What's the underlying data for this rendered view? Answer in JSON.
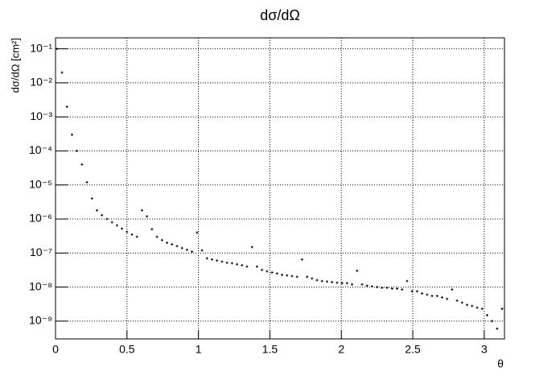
{
  "chart_data": {
    "type": "scatter",
    "title": "dσ/dΩ",
    "x_label": "θ",
    "y_label": "dσ/dΩ [cm²]",
    "log_y": true,
    "grid": true,
    "color": "#000000",
    "xlim": [
      0,
      3.1416
    ],
    "ylim": [
      3e-10,
      0.21
    ],
    "xticks": [
      0,
      0.5,
      1,
      1.5,
      2,
      2.5,
      3
    ],
    "yticks": [
      {
        "value": 1e-09,
        "label": "10⁻⁹"
      },
      {
        "value": 1e-08,
        "label": "10⁻⁸"
      },
      {
        "value": 1e-07,
        "label": "10⁻⁷"
      },
      {
        "value": 1e-06,
        "label": "10⁻⁶"
      },
      {
        "value": 1e-05,
        "label": "10⁻⁵"
      },
      {
        "value": 0.0001,
        "label": "10⁻⁴"
      },
      {
        "value": 0.001,
        "label": "10⁻³"
      },
      {
        "value": 0.01,
        "label": "10⁻²"
      },
      {
        "value": 0.1,
        "label": "10⁻¹"
      }
    ],
    "x": [
      0.01,
      0.045,
      0.08,
      0.115,
      0.15,
      0.185,
      0.22,
      0.255,
      0.29,
      0.325,
      0.36,
      0.395,
      0.43,
      0.465,
      0.5,
      0.535,
      0.57,
      0.605,
      0.64,
      0.675,
      0.71,
      0.745,
      0.78,
      0.815,
      0.85,
      0.885,
      0.92,
      0.955,
      0.99,
      1.025,
      1.06,
      1.095,
      1.13,
      1.165,
      1.2,
      1.235,
      1.27,
      1.305,
      1.34,
      1.375,
      1.41,
      1.445,
      1.48,
      1.515,
      1.55,
      1.585,
      1.62,
      1.655,
      1.69,
      1.725,
      1.76,
      1.795,
      1.83,
      1.865,
      1.9,
      1.935,
      1.97,
      2.005,
      2.04,
      2.075,
      2.11,
      2.145,
      2.18,
      2.215,
      2.25,
      2.285,
      2.32,
      2.355,
      2.39,
      2.425,
      2.46,
      2.495,
      2.53,
      2.565,
      2.6,
      2.635,
      2.67,
      2.705,
      2.74,
      2.775,
      2.81,
      2.845,
      2.88,
      2.915,
      2.95,
      2.985,
      3.02,
      3.055,
      3.09,
      3.125
    ],
    "values": [
      0.1,
      0.02,
      0.002,
      0.0003,
      0.0001,
      4e-05,
      1.2e-05,
      4e-06,
      1.8e-06,
      1.3e-06,
      1e-06,
      8e-07,
      6.5e-07,
      5.2e-07,
      4.2e-07,
      3.5e-07,
      3e-07,
      1.8e-06,
      1.2e-06,
      5e-07,
      3e-07,
      2.4e-07,
      2e-07,
      1.8e-07,
      1.6e-07,
      1.4e-07,
      1.25e-07,
      1.1e-07,
      4e-07,
      1.2e-07,
      7e-08,
      6.5e-08,
      6e-08,
      5.6e-08,
      5.2e-08,
      5e-08,
      4.7e-08,
      4.4e-08,
      4e-08,
      1.5e-07,
      4e-08,
      3.2e-08,
      2.9e-08,
      2.7e-08,
      2.5e-08,
      2.3e-08,
      2.2e-08,
      2.1e-08,
      2e-08,
      6.5e-08,
      2e-08,
      1.8e-08,
      1.6e-08,
      1.5e-08,
      1.45e-08,
      1.4e-08,
      1.35e-08,
      1.3e-08,
      1.3e-08,
      1.2e-08,
      3e-08,
      1.2e-08,
      1.1e-08,
      1.05e-08,
      1e-08,
      9.5e-09,
      9.5e-09,
      9e-09,
      9e-09,
      8.5e-09,
      1.5e-08,
      7.5e-09,
      7.5e-09,
      6.5e-09,
      6e-09,
      5.5e-09,
      5.5e-09,
      5e-09,
      4.5e-09,
      8.5e-09,
      4e-09,
      3.5e-09,
      3e-09,
      2.8e-09,
      2.5e-09,
      2.3e-09,
      1.5e-09,
      1e-09,
      6e-10,
      2.3e-09
    ]
  }
}
